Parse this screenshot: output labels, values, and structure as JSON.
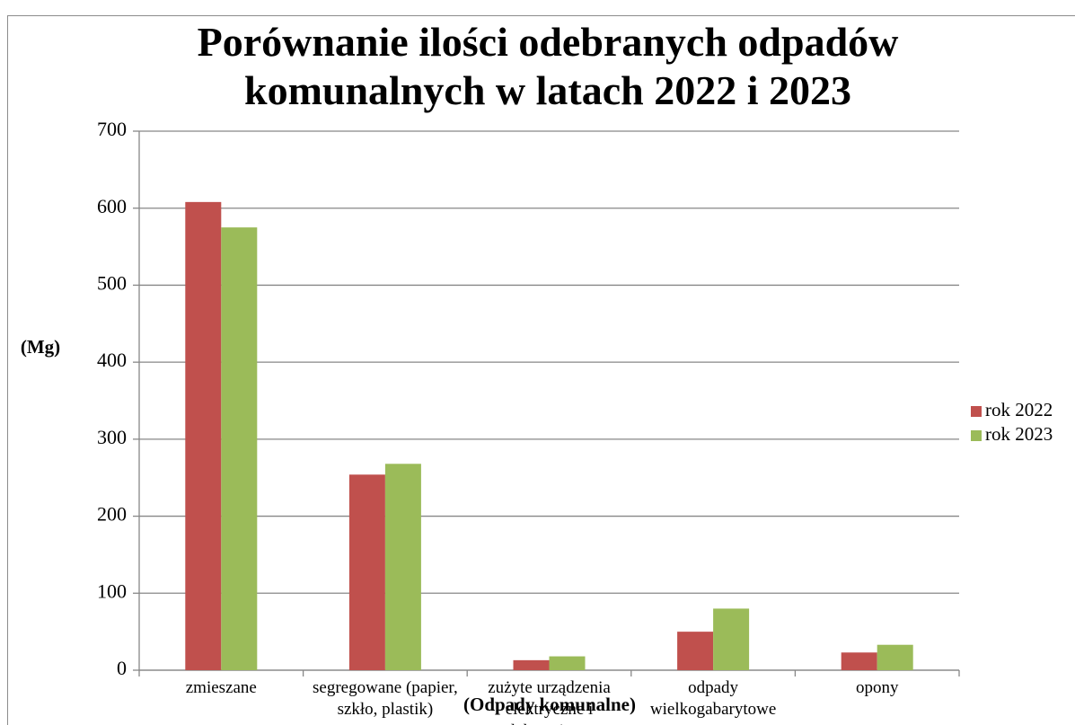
{
  "chart_data": {
    "type": "bar",
    "title": "Porównanie ilości odebranych odpadów komunalnych w latach 2022 i 2023",
    "y_label": "(Mg)",
    "x_label": "(Odpady komunalne)",
    "categories": [
      "zmieszane",
      "segregowane (papier, szkło, plastik)",
      "zużyte urządzenia elektryczne i elektroniczne",
      "odpady wielkogabarytowe",
      "opony"
    ],
    "series": [
      {
        "name": "rok 2022",
        "color": "#c0504d",
        "values": [
          608,
          254,
          13,
          50,
          23
        ]
      },
      {
        "name": "rok 2023",
        "color": "#9bbb59",
        "values": [
          575,
          268,
          18,
          80,
          33
        ]
      }
    ],
    "ylim": [
      0,
      700
    ],
    "yticks": [
      0,
      100,
      200,
      300,
      400,
      500,
      600,
      700
    ],
    "grid": true,
    "legend": "right"
  }
}
